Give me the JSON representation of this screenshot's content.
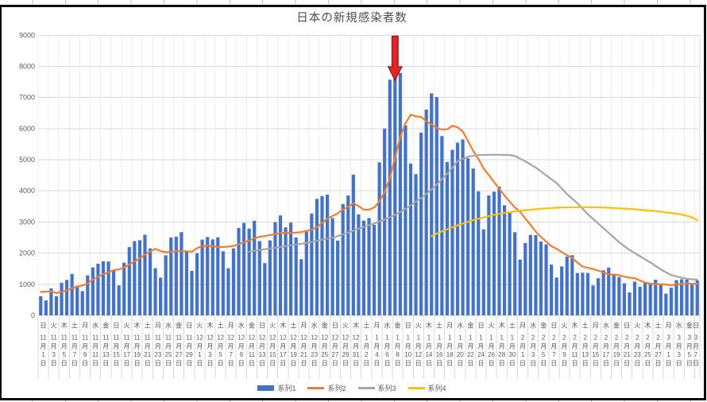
{
  "chart": {
    "title": "日本の新規感染者数",
    "y_ticks": [
      "0",
      "1000",
      "2000",
      "3000",
      "4000",
      "5000",
      "6000",
      "7000",
      "8000",
      "9000"
    ],
    "legend": [
      "系列1",
      "系列2",
      "系列3",
      "系列4"
    ],
    "colors": {
      "bar": "#4472C4",
      "line2": "#ED7D31",
      "line3": "#A5A5A5",
      "line4": "#FFC000",
      "hgrid": "#D9D9D9",
      "vgrid": "#EDEDED",
      "label_sep": "#D9D9D9",
      "axis_text": "#595959",
      "frame": "#0B0B0B",
      "arrow_fill": "#E3242B",
      "arrow_stroke": "#8E1A1C"
    },
    "annotation": {
      "shape": "down-arrow",
      "target_date": "1月8日",
      "target_index": 68
    }
  },
  "chart_data": {
    "type": "bar+line combo",
    "title": "日本の新規感染者数",
    "x_start": "11月1日",
    "x_end": "3月7日",
    "x_days": 127,
    "ylim": [
      0,
      9000
    ],
    "y_step": 1000,
    "grid": "on",
    "legend_position": "bottom",
    "x_tick_labels": [
      [
        11,
        1,
        "日"
      ],
      [
        11,
        3,
        "火"
      ],
      [
        11,
        5,
        "木"
      ],
      [
        11,
        7,
        "土"
      ],
      [
        11,
        9,
        "月"
      ],
      [
        11,
        11,
        "水"
      ],
      [
        11,
        13,
        "金"
      ],
      [
        11,
        15,
        "日"
      ],
      [
        11,
        17,
        "火"
      ],
      [
        11,
        19,
        "木"
      ],
      [
        11,
        21,
        "土"
      ],
      [
        11,
        23,
        "月"
      ],
      [
        11,
        25,
        "水"
      ],
      [
        11,
        27,
        "金"
      ],
      [
        11,
        29,
        "日"
      ],
      [
        12,
        1,
        "火"
      ],
      [
        12,
        3,
        "木"
      ],
      [
        12,
        5,
        "土"
      ],
      [
        12,
        7,
        "月"
      ],
      [
        12,
        9,
        "水"
      ],
      [
        12,
        11,
        "金"
      ],
      [
        12,
        13,
        "日"
      ],
      [
        12,
        15,
        "火"
      ],
      [
        12,
        17,
        "木"
      ],
      [
        12,
        19,
        "土"
      ],
      [
        12,
        21,
        "月"
      ],
      [
        12,
        23,
        "水"
      ],
      [
        12,
        25,
        "金"
      ],
      [
        12,
        27,
        "日"
      ],
      [
        12,
        29,
        "火"
      ],
      [
        12,
        31,
        "木"
      ],
      [
        1,
        2,
        "土"
      ],
      [
        1,
        4,
        "月"
      ],
      [
        1,
        6,
        "水"
      ],
      [
        1,
        8,
        "金"
      ],
      [
        1,
        10,
        "日"
      ],
      [
        1,
        12,
        "火"
      ],
      [
        1,
        14,
        "木"
      ],
      [
        1,
        16,
        "土"
      ],
      [
        1,
        18,
        "月"
      ],
      [
        1,
        20,
        "水"
      ],
      [
        1,
        22,
        "金"
      ],
      [
        1,
        24,
        "日"
      ],
      [
        1,
        26,
        "火"
      ],
      [
        1,
        28,
        "木"
      ],
      [
        1,
        30,
        "土"
      ],
      [
        2,
        1,
        "月"
      ],
      [
        2,
        3,
        "水"
      ],
      [
        2,
        5,
        "金"
      ],
      [
        2,
        7,
        "日"
      ],
      [
        2,
        9,
        "火"
      ],
      [
        2,
        11,
        "木"
      ],
      [
        2,
        13,
        "土"
      ],
      [
        2,
        15,
        "月"
      ],
      [
        2,
        17,
        "水"
      ],
      [
        2,
        19,
        "金"
      ],
      [
        2,
        21,
        "日"
      ],
      [
        2,
        23,
        "火"
      ],
      [
        2,
        25,
        "木"
      ],
      [
        2,
        27,
        "土"
      ],
      [
        3,
        1,
        "月"
      ],
      [
        3,
        3,
        "水"
      ],
      [
        3,
        5,
        "金"
      ],
      [
        3,
        7,
        "日"
      ]
    ],
    "series": [
      {
        "name": "系列1",
        "type": "bar",
        "color": "#4472C4",
        "start_index": 0,
        "values": [
          616,
          482,
          868,
          620,
          1049,
          1140,
          1332,
          955,
          780,
          1287,
          1543,
          1660,
          1737,
          1734,
          1434,
          964,
          1693,
          2194,
          2386,
          2415,
          2591,
          2153,
          1515,
          1213,
          1931,
          2501,
          2525,
          2674,
          2049,
          1431,
          1998,
          2434,
          2518,
          2442,
          2508,
          2058,
          1516,
          2152,
          2811,
          2972,
          2788,
          3041,
          2387,
          1680,
          2410,
          2994,
          3211,
          2829,
          2982,
          2501,
          1805,
          2688,
          3271,
          3742,
          3832,
          3881,
          3127,
          2403,
          3577,
          3852,
          4520,
          3246,
          3044,
          3127,
          2908,
          4915,
          6004,
          7570,
          7882,
          7790,
          6106,
          4876,
          4536,
          5870,
          6610,
          7133,
          7014,
          5759,
          4925,
          5320,
          5549,
          5653,
          5045,
          4717,
          3985,
          2764,
          3853,
          3973,
          4133,
          3539,
          3344,
          2673,
          1792,
          2325,
          2585,
          2577,
          2372,
          2279,
          1632,
          1216,
          1573,
          1887,
          1933,
          1362,
          1371,
          1364,
          965,
          1194,
          1448,
          1538,
          1301,
          1234,
          1032,
          740,
          1085,
          922,
          1076,
          1032,
          1148,
          999,
          697,
          888,
          1134,
          1161,
          1148,
          1038,
          1121
        ]
      },
      {
        "name": "系列2",
        "type": "line",
        "color": "#ED7D31",
        "start_index": 0,
        "values": [
          752,
          763,
          772,
          720,
          755,
          807,
          872,
          921,
          963,
          1023,
          1155,
          1242,
          1328,
          1385,
          1454,
          1480,
          1538,
          1631,
          1735,
          1831,
          1954,
          2057,
          2135,
          2067,
          2029,
          2046,
          2061,
          2073,
          2058,
          2046,
          2158,
          2230,
          2233,
          2221,
          2197,
          2198,
          2211,
          2233,
          2286,
          2351,
          2401,
          2477,
          2524,
          2547,
          2584,
          2610,
          2644,
          2650,
          2642,
          2658,
          2676,
          2716,
          2755,
          2831,
          2974,
          3103,
          3192,
          3278,
          3405,
          3488,
          3599,
          3515,
          3396,
          3396,
          3468,
          3659,
          3966,
          4402,
          5064,
          5742,
          6168,
          6449,
          6395,
          6376,
          6239,
          6132,
          6021,
          5971,
          5978,
          6090,
          6044,
          5908,
          5609,
          5281,
          5028,
          4719,
          4509,
          4284,
          4067,
          3852,
          3656,
          3468,
          3330,
          3111,
          2913,
          2691,
          2524,
          2372,
          2223,
          2141,
          2033,
          1934,
          1842,
          1697,
          1568,
          1529,
          1494,
          1439,
          1377,
          1320,
          1312,
          1292,
          1245,
          1212,
          1197,
          1122,
          1056,
          1017,
          1005,
          1000,
          994,
          966,
          996,
          1008,
          1025,
          1009,
          1027
        ]
      },
      {
        "name": "系列3",
        "type": "line",
        "color": "#A5A5A5",
        "start_index": 40,
        "values": [
          2050,
          2075,
          2100,
          2125,
          2150,
          2175,
          2200,
          2225,
          2250,
          2275,
          2300,
          2330,
          2360,
          2395,
          2430,
          2465,
          2500,
          2550,
          2600,
          2660,
          2720,
          2780,
          2840,
          2895,
          2950,
          3015,
          3080,
          3155,
          3230,
          3325,
          3420,
          3535,
          3650,
          3775,
          3900,
          4050,
          4200,
          4375,
          4550,
          4750,
          4950,
          5025,
          5100,
          5125,
          5150,
          5155,
          5160,
          5160,
          5160,
          5155,
          5150,
          5120,
          5035,
          4950,
          4850,
          4750,
          4625,
          4500,
          4375,
          4250,
          4075,
          3900,
          3750,
          3600,
          3425,
          3250,
          3100,
          2950,
          2800,
          2650,
          2500,
          2350,
          2225,
          2100,
          2000,
          1900,
          1800,
          1700,
          1590,
          1480,
          1380,
          1300,
          1250,
          1210,
          1180,
          1160,
          1150
        ]
      },
      {
        "name": "系列4",
        "type": "line",
        "color": "#FFC000",
        "start_index": 75,
        "values": [
          2550,
          2625,
          2700,
          2765,
          2830,
          2890,
          2950,
          3005,
          3060,
          3105,
          3150,
          3190,
          3230,
          3260,
          3290,
          3315,
          3340,
          3360,
          3380,
          3395,
          3410,
          3425,
          3440,
          3450,
          3460,
          3465,
          3470,
          3472,
          3475,
          3475,
          3475,
          3472,
          3470,
          3465,
          3460,
          3450,
          3440,
          3430,
          3420,
          3408,
          3395,
          3380,
          3365,
          3348,
          3330,
          3310,
          3290,
          3265,
          3240,
          3200,
          3150,
          3060
        ]
      }
    ]
  }
}
